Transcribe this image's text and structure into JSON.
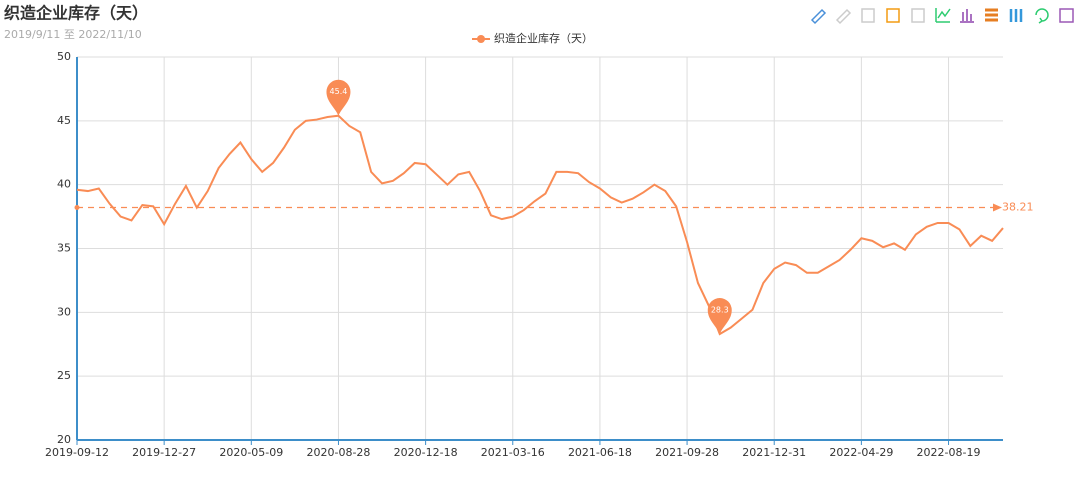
{
  "chart_data": {
    "type": "line",
    "title": "织造企业库存（天）",
    "subtitle": "2019/9/11 至 2022/11/10",
    "categories": [
      "2019-09-12",
      null,
      null,
      null,
      null,
      null,
      null,
      null,
      "2019-12-27",
      null,
      null,
      null,
      null,
      null,
      null,
      null,
      "2020-05-09",
      null,
      null,
      null,
      null,
      null,
      null,
      null,
      "2020-08-28",
      null,
      null,
      null,
      null,
      null,
      null,
      null,
      "2020-12-18",
      null,
      null,
      null,
      null,
      null,
      null,
      null,
      "2021-03-16",
      null,
      null,
      null,
      null,
      null,
      null,
      null,
      "2021-06-18",
      null,
      null,
      null,
      null,
      null,
      null,
      null,
      "2021-09-28",
      null,
      null,
      null,
      null,
      null,
      null,
      null,
      "2021-12-31",
      null,
      null,
      null,
      null,
      null,
      null,
      null,
      "2022-04-29",
      null,
      null,
      null,
      null,
      null,
      null,
      null,
      "2022-08-19",
      null,
      null,
      null,
      null,
      null
    ],
    "series": [
      {
        "name": "织造企业库存（天）",
        "color": "#f98c55",
        "values": [
          39.6,
          39.5,
          39.7,
          38.5,
          37.5,
          37.2,
          38.4,
          38.3,
          36.9,
          38.5,
          39.9,
          38.2,
          39.5,
          41.3,
          42.4,
          43.3,
          42.0,
          41.0,
          41.7,
          42.9,
          44.3,
          45.0,
          45.1,
          45.3,
          45.4,
          44.6,
          44.1,
          41.0,
          40.1,
          40.3,
          40.9,
          41.7,
          41.6,
          40.8,
          40.0,
          40.8,
          41.0,
          39.5,
          37.6,
          37.3,
          37.5,
          38.0,
          38.7,
          39.3,
          41.0,
          41.0,
          40.9,
          40.2,
          39.7,
          39.0,
          38.6,
          38.9,
          39.4,
          40.0,
          39.5,
          38.3,
          35.5,
          32.3,
          30.5,
          28.3,
          28.8,
          29.5,
          30.2,
          32.3,
          33.4,
          33.9,
          33.7,
          33.1,
          33.1,
          33.6,
          34.1,
          34.9,
          35.8,
          35.6,
          35.1,
          35.4,
          34.9,
          36.1,
          36.7,
          37.0,
          37.0,
          36.5,
          35.2,
          36.0,
          35.6,
          36.6
        ]
      }
    ],
    "max_value": 45.4,
    "min_value": 28.3,
    "average": 38.21,
    "ylim": [
      20,
      50
    ],
    "yticks": [
      20,
      25,
      30,
      35,
      40,
      45,
      50
    ],
    "grid": true
  }
}
